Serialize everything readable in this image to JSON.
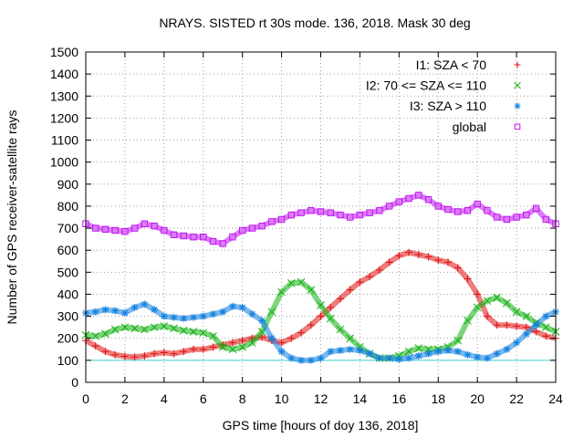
{
  "chart_data": {
    "type": "scatter",
    "title": "NRAYS. SISTED rt 30s mode. 136, 2018. Mask 30 deg",
    "xlabel": "GPS time [hours of doy 136, 2018]",
    "ylabel": "Number of GPS receiver-satellite rays",
    "xlim": [
      0,
      24
    ],
    "ylim": [
      0,
      1500
    ],
    "xticks": [
      0,
      2,
      4,
      6,
      8,
      10,
      12,
      14,
      16,
      18,
      20,
      22,
      24
    ],
    "yticks": [
      0,
      100,
      200,
      300,
      400,
      500,
      600,
      700,
      800,
      900,
      1000,
      1100,
      1200,
      1300,
      1400,
      1500
    ],
    "grid": true,
    "legend_position": "top-right",
    "reference_line": {
      "y": 100,
      "color": "#40d0d0"
    },
    "series": [
      {
        "name": "I1: SZA < 70",
        "color": "#e01010",
        "marker": "plus",
        "x": [
          0,
          0.5,
          1,
          1.5,
          2,
          2.5,
          3,
          3.5,
          4,
          4.5,
          5,
          5.5,
          6,
          6.5,
          7,
          7.5,
          8,
          8.5,
          9,
          9.5,
          10,
          10.5,
          11,
          11.5,
          12,
          12.5,
          13,
          13.5,
          14,
          14.5,
          15,
          15.5,
          16,
          16.5,
          17,
          17.5,
          18,
          18.5,
          19,
          19.5,
          20,
          20.5,
          21,
          21.5,
          22,
          22.5,
          23,
          23.5,
          24
        ],
        "values": [
          190,
          165,
          140,
          125,
          118,
          115,
          120,
          130,
          135,
          130,
          140,
          150,
          150,
          160,
          170,
          180,
          190,
          200,
          205,
          190,
          180,
          200,
          225,
          260,
          300,
          340,
          380,
          420,
          455,
          480,
          510,
          545,
          575,
          590,
          580,
          570,
          555,
          545,
          520,
          470,
          400,
          300,
          260,
          260,
          255,
          250,
          230,
          210,
          200
        ]
      },
      {
        "name": "I2: 70 <= SZA <= 110",
        "color": "#10b010",
        "marker": "cross",
        "x": [
          0,
          0.5,
          1,
          1.5,
          2,
          2.5,
          3,
          3.5,
          4,
          4.5,
          5,
          5.5,
          6,
          6.5,
          7,
          7.5,
          8,
          8.5,
          9,
          9.5,
          10,
          10.5,
          11,
          11.5,
          12,
          12.5,
          13,
          13.5,
          14,
          14.5,
          15,
          15.5,
          16,
          16.5,
          17,
          17.5,
          18,
          18.5,
          19,
          19.5,
          20,
          20.5,
          21,
          21.5,
          22,
          22.5,
          23,
          23.5,
          24
        ],
        "values": [
          215,
          210,
          220,
          240,
          250,
          245,
          240,
          250,
          255,
          245,
          235,
          230,
          225,
          210,
          160,
          150,
          160,
          180,
          230,
          320,
          410,
          450,
          455,
          420,
          350,
          290,
          240,
          200,
          160,
          130,
          110,
          110,
          120,
          140,
          155,
          150,
          150,
          160,
          190,
          280,
          340,
          370,
          385,
          360,
          320,
          300,
          270,
          250,
          230
        ]
      },
      {
        "name": "I3: SZA > 110",
        "color": "#1080e0",
        "marker": "star",
        "x": [
          0,
          0.5,
          1,
          1.5,
          2,
          2.5,
          3,
          3.5,
          4,
          4.5,
          5,
          5.5,
          6,
          6.5,
          7,
          7.5,
          8,
          8.5,
          9,
          9.5,
          10,
          10.5,
          11,
          11.5,
          12,
          12.5,
          13,
          13.5,
          14,
          14.5,
          15,
          15.5,
          16,
          16.5,
          17,
          17.5,
          18,
          18.5,
          19,
          19.5,
          20,
          20.5,
          21,
          21.5,
          22,
          22.5,
          23,
          23.5,
          24
        ],
        "values": [
          315,
          320,
          330,
          325,
          315,
          340,
          355,
          330,
          300,
          295,
          290,
          295,
          300,
          310,
          320,
          345,
          340,
          310,
          280,
          200,
          140,
          110,
          100,
          100,
          110,
          140,
          145,
          150,
          145,
          130,
          110,
          110,
          105,
          110,
          120,
          130,
          140,
          145,
          140,
          125,
          115,
          110,
          130,
          150,
          180,
          220,
          260,
          300,
          320
        ]
      },
      {
        "name": "global",
        "color": "#c010f0",
        "marker": "square",
        "x": [
          0,
          0.5,
          1,
          1.5,
          2,
          2.5,
          3,
          3.5,
          4,
          4.5,
          5,
          5.5,
          6,
          6.5,
          7,
          7.5,
          8,
          8.5,
          9,
          9.5,
          10,
          10.5,
          11,
          11.5,
          12,
          12.5,
          13,
          13.5,
          14,
          14.5,
          15,
          15.5,
          16,
          16.5,
          17,
          17.5,
          18,
          18.5,
          19,
          19.5,
          20,
          20.5,
          21,
          21.5,
          22,
          22.5,
          23,
          23.5,
          24
        ],
        "values": [
          720,
          700,
          695,
          690,
          685,
          700,
          720,
          710,
          690,
          670,
          665,
          660,
          660,
          640,
          630,
          660,
          690,
          700,
          710,
          730,
          740,
          760,
          770,
          780,
          775,
          770,
          760,
          750,
          760,
          770,
          780,
          800,
          820,
          835,
          850,
          830,
          800,
          785,
          775,
          780,
          810,
          780,
          750,
          740,
          750,
          760,
          790,
          740,
          720
        ]
      }
    ]
  }
}
